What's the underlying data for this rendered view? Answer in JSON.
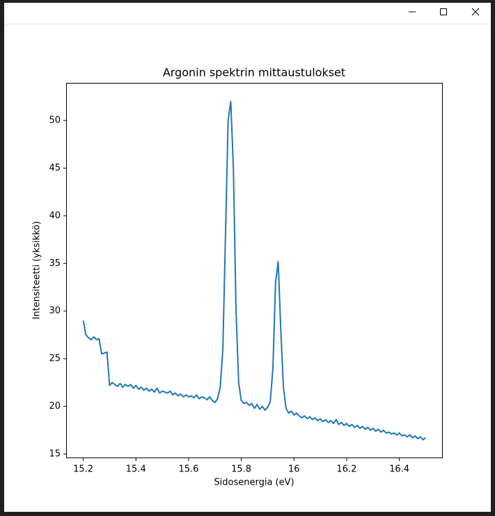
{
  "chart_data": {
    "type": "line",
    "title": "Argonin spektrin mittaustulokset",
    "x_label": "Sidosenergia (eV)",
    "y_label": "Intensiteetti (yksikkö)",
    "color": "#1f77b4",
    "x": [
      15.2,
      15.21,
      15.22,
      15.23,
      15.24,
      15.25,
      15.26,
      15.27,
      15.28,
      15.29,
      15.3,
      15.31,
      15.32,
      15.33,
      15.34,
      15.35,
      15.36,
      15.37,
      15.38,
      15.39,
      15.4,
      15.41,
      15.42,
      15.43,
      15.44,
      15.45,
      15.46,
      15.47,
      15.48,
      15.49,
      15.5,
      15.51,
      15.52,
      15.53,
      15.54,
      15.55,
      15.56,
      15.57,
      15.58,
      15.59,
      15.6,
      15.61,
      15.62,
      15.63,
      15.64,
      15.65,
      15.66,
      15.67,
      15.68,
      15.69,
      15.7,
      15.71,
      15.72,
      15.73,
      15.74,
      15.75,
      15.76,
      15.77,
      15.78,
      15.79,
      15.8,
      15.81,
      15.82,
      15.83,
      15.84,
      15.85,
      15.86,
      15.87,
      15.88,
      15.89,
      15.9,
      15.91,
      15.92,
      15.93,
      15.94,
      15.95,
      15.96,
      15.97,
      15.98,
      15.99,
      16.0,
      16.01,
      16.02,
      16.03,
      16.04,
      16.05,
      16.06,
      16.07,
      16.08,
      16.09,
      16.1,
      16.11,
      16.12,
      16.13,
      16.14,
      16.15,
      16.16,
      16.17,
      16.18,
      16.19,
      16.2,
      16.21,
      16.22,
      16.23,
      16.24,
      16.25,
      16.26,
      16.27,
      16.28,
      16.29,
      16.3,
      16.31,
      16.32,
      16.33,
      16.34,
      16.35,
      16.36,
      16.37,
      16.38,
      16.39,
      16.4,
      16.41,
      16.42,
      16.43,
      16.44,
      16.45,
      16.46,
      16.47,
      16.48,
      16.49,
      16.5
    ],
    "values": [
      29,
      27.5,
      27.2,
      27,
      27.3,
      27,
      27.1,
      25.5,
      25.6,
      25.7,
      22.2,
      22.5,
      22.3,
      22.1,
      22.4,
      22,
      22.3,
      22.1,
      22.3,
      21.9,
      22.2,
      21.8,
      22,
      21.7,
      21.9,
      21.6,
      21.8,
      21.5,
      21.9,
      21.4,
      21.6,
      21.5,
      21.4,
      21.6,
      21.2,
      21.4,
      21.1,
      21.3,
      21,
      21.2,
      21,
      21.1,
      20.9,
      21.2,
      20.8,
      21,
      20.9,
      20.7,
      21,
      20.6,
      20.4,
      20.8,
      22,
      26,
      38,
      50,
      52,
      45,
      30,
      22.5,
      20.6,
      20.3,
      20.4,
      20.1,
      20.3,
      19.8,
      20.2,
      19.7,
      20,
      19.6,
      19.9,
      20.5,
      24,
      33,
      35.2,
      28,
      22,
      19.8,
      19.3,
      19.5,
      19.1,
      19.3,
      19,
      18.8,
      19,
      18.7,
      18.9,
      18.6,
      18.8,
      18.5,
      18.7,
      18.4,
      18.6,
      18.3,
      18.5,
      18.2,
      18.6,
      18.1,
      18.3,
      18,
      18.2,
      17.9,
      18.1,
      17.8,
      18,
      17.7,
      17.9,
      17.6,
      17.8,
      17.5,
      17.7,
      17.4,
      17.6,
      17.3,
      17.5,
      17.2,
      17.3,
      17.1,
      17.2,
      17,
      17.2,
      16.9,
      17,
      16.8,
      17,
      16.7,
      16.9,
      16.6,
      16.8,
      16.5,
      16.7
    ],
    "xlim": [
      15.135,
      16.565
    ],
    "xticks": [
      15.2,
      15.4,
      15.6,
      15.8,
      16.0,
      16.2,
      16.4
    ],
    "ylim": [
      14.56,
      53.95
    ],
    "yticks": [
      15,
      20,
      25,
      30,
      35,
      40,
      45,
      50
    ]
  }
}
